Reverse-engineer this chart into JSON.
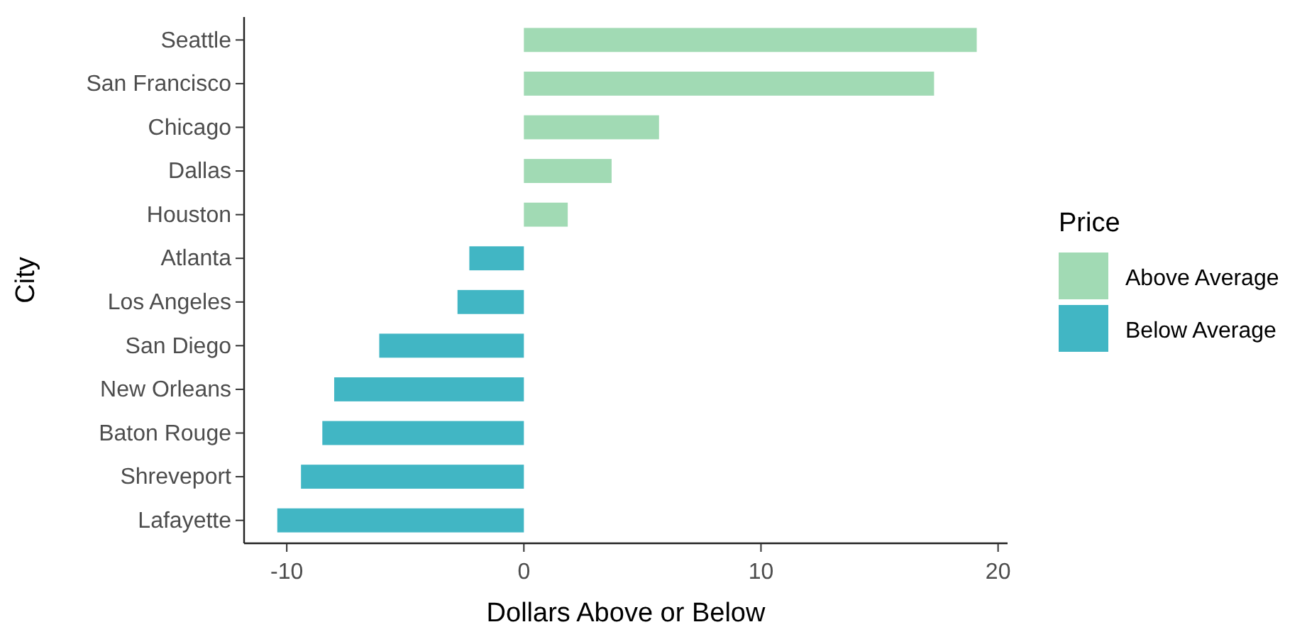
{
  "chart_data": {
    "type": "bar",
    "orientation": "horizontal",
    "xlabel": "Dollars Above or Below",
    "ylabel": "City",
    "legend_title": "Price",
    "legend": "right",
    "grid": false,
    "categories": [
      "Seattle",
      "San Francisco",
      "Chicago",
      "Dallas",
      "Houston",
      "Atlanta",
      "Los Angeles",
      "San Diego",
      "New Orleans",
      "Baton Rouge",
      "Shreveport",
      "Lafayette"
    ],
    "series": [
      {
        "name": "Above Average",
        "color": "#a1dab4",
        "values": [
          19.1,
          17.3,
          5.7,
          3.7,
          1.85,
          null,
          null,
          null,
          null,
          null,
          null,
          null
        ]
      },
      {
        "name": "Below Average",
        "color": "#41b6c4",
        "values": [
          null,
          null,
          null,
          null,
          null,
          -2.3,
          -2.8,
          -6.1,
          -8.0,
          -8.5,
          -9.4,
          -10.4
        ]
      }
    ],
    "xlim": [
      -11.8,
      20.4
    ],
    "xticks": [
      -10,
      0,
      10,
      20
    ]
  }
}
